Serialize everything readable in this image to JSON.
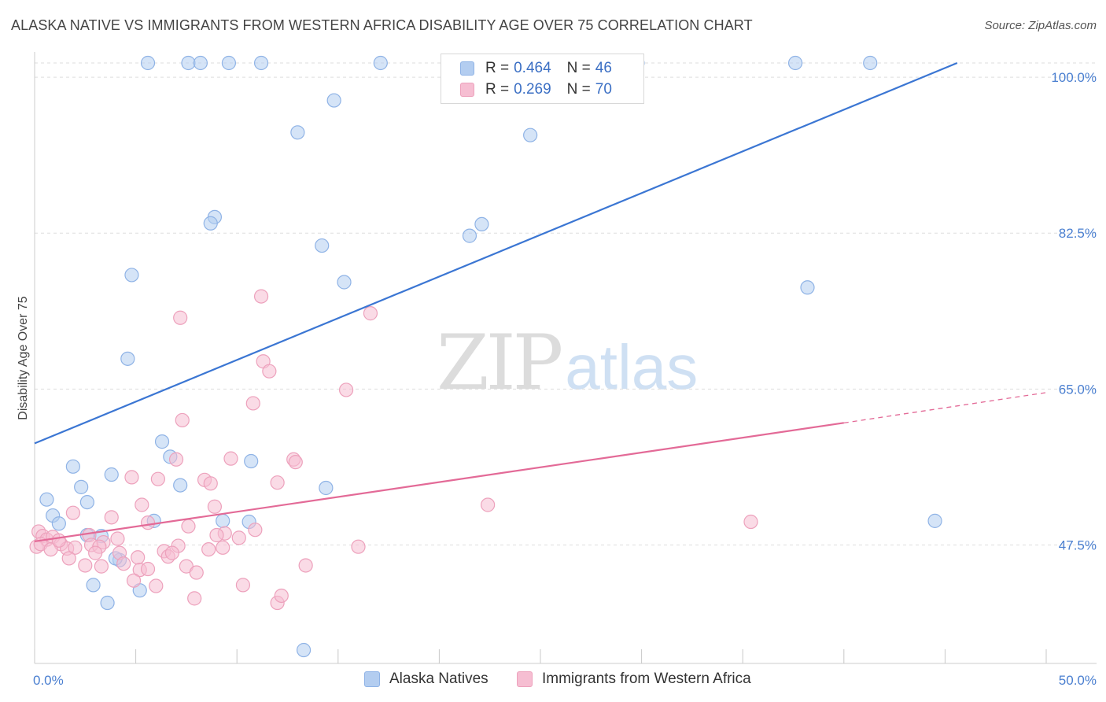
{
  "title": "ALASKA NATIVE VS IMMIGRANTS FROM WESTERN AFRICA DISABILITY AGE OVER 75 CORRELATION CHART",
  "source": "Source: ZipAtlas.com",
  "watermark": {
    "zip": "ZIP",
    "atlas": "atlas"
  },
  "colors": {
    "blue": "#3b76d3",
    "blue_fill": "#b3cdf0",
    "pink": "#e36a97",
    "pink_fill": "#f6bed2",
    "tick": "#4a7fd0",
    "grid": "#dddddd"
  },
  "legend": {
    "r_label": "R =",
    "n_label": "N =",
    "rows": [
      {
        "r": "0.464",
        "n": "46"
      },
      {
        "r": "0.269",
        "n": "70"
      }
    ]
  },
  "chart_data": {
    "type": "scatter",
    "title": "ALASKA NATIVE VS IMMIGRANTS FROM WESTERN AFRICA DISABILITY AGE OVER 75 CORRELATION CHART",
    "xlabel": "",
    "ylabel": "Disability Age Over 75",
    "xlim": [
      0,
      50
    ],
    "ylim": [
      34.2,
      101.6
    ],
    "x_tick_labels": [
      "0.0%",
      "50.0%"
    ],
    "y_ticks": [
      47.5,
      65.0,
      82.5,
      100.0
    ],
    "y_tick_labels": [
      "47.5%",
      "65.0%",
      "82.5%",
      "100.0%"
    ],
    "grid": true,
    "legend_placement": "bottom",
    "series": [
      {
        "name": "Alaska Natives",
        "color": "#3b76d3",
        "trend": {
          "x": [
            0,
            45.6
          ],
          "y": [
            58.9,
            101.6
          ]
        },
        "points": [
          [
            5.6,
            101.6
          ],
          [
            7.6,
            101.6
          ],
          [
            8.2,
            101.6
          ],
          [
            9.6,
            101.6
          ],
          [
            11.2,
            101.6
          ],
          [
            17.1,
            101.6
          ],
          [
            20.6,
            101.6
          ],
          [
            29.8,
            101.6
          ],
          [
            37.6,
            101.6
          ],
          [
            41.3,
            101.6
          ],
          [
            14.8,
            97.4
          ],
          [
            13.0,
            93.8
          ],
          [
            24.5,
            93.5
          ],
          [
            8.9,
            84.3
          ],
          [
            8.7,
            83.6
          ],
          [
            21.5,
            82.2
          ],
          [
            22.1,
            83.5
          ],
          [
            14.2,
            81.1
          ],
          [
            4.8,
            77.8
          ],
          [
            15.3,
            77.0
          ],
          [
            38.2,
            76.4
          ],
          [
            4.6,
            68.4
          ],
          [
            6.3,
            59.1
          ],
          [
            6.7,
            57.4
          ],
          [
            10.7,
            56.9
          ],
          [
            1.9,
            56.3
          ],
          [
            3.8,
            55.4
          ],
          [
            7.2,
            54.2
          ],
          [
            2.3,
            54.0
          ],
          [
            14.4,
            53.9
          ],
          [
            0.6,
            52.6
          ],
          [
            2.6,
            52.3
          ],
          [
            0.9,
            50.8
          ],
          [
            1.2,
            49.9
          ],
          [
            5.9,
            50.2
          ],
          [
            9.3,
            50.2
          ],
          [
            10.6,
            50.1
          ],
          [
            2.6,
            48.6
          ],
          [
            3.3,
            48.5
          ],
          [
            4.2,
            45.8
          ],
          [
            2.9,
            43.0
          ],
          [
            4.0,
            46.0
          ],
          [
            5.2,
            42.4
          ],
          [
            3.6,
            41.0
          ],
          [
            13.3,
            35.7
          ],
          [
            44.5,
            50.2
          ]
        ]
      },
      {
        "name": "Immigrants from Western Africa",
        "color": "#e36a97",
        "trend": {
          "x": [
            0,
            40
          ],
          "y": [
            47.9,
            61.2
          ]
        },
        "trend_dashed": {
          "x": [
            40,
            50
          ],
          "y": [
            61.2,
            64.6
          ]
        },
        "points": [
          [
            11.2,
            75.4
          ],
          [
            7.2,
            73.0
          ],
          [
            11.3,
            68.1
          ],
          [
            11.6,
            67.0
          ],
          [
            15.4,
            64.9
          ],
          [
            10.8,
            63.4
          ],
          [
            7.3,
            61.5
          ],
          [
            9.7,
            57.2
          ],
          [
            7.0,
            57.1
          ],
          [
            12.8,
            57.1
          ],
          [
            12.9,
            56.8
          ],
          [
            4.8,
            55.1
          ],
          [
            6.1,
            54.9
          ],
          [
            8.4,
            54.8
          ],
          [
            8.7,
            54.4
          ],
          [
            12.0,
            54.5
          ],
          [
            5.3,
            52.0
          ],
          [
            8.9,
            51.8
          ],
          [
            22.4,
            52.0
          ],
          [
            1.9,
            51.1
          ],
          [
            3.8,
            50.6
          ],
          [
            5.6,
            50.0
          ],
          [
            7.6,
            49.6
          ],
          [
            9.4,
            48.8
          ],
          [
            10.9,
            49.2
          ],
          [
            0.2,
            49.0
          ],
          [
            0.4,
            48.5
          ],
          [
            0.6,
            48.1
          ],
          [
            0.9,
            48.4
          ],
          [
            1.3,
            47.6
          ],
          [
            1.6,
            47.1
          ],
          [
            2.7,
            48.6
          ],
          [
            3.4,
            47.8
          ],
          [
            4.1,
            48.2
          ],
          [
            0.1,
            47.3
          ],
          [
            0.3,
            47.6
          ],
          [
            0.8,
            47.0
          ],
          [
            1.2,
            48.0
          ],
          [
            2.0,
            47.2
          ],
          [
            2.8,
            47.5
          ],
          [
            3.2,
            47.3
          ],
          [
            4.2,
            46.6
          ],
          [
            5.1,
            46.1
          ],
          [
            6.4,
            46.8
          ],
          [
            7.1,
            47.4
          ],
          [
            8.6,
            47.0
          ],
          [
            9.3,
            47.2
          ],
          [
            10.1,
            48.3
          ],
          [
            6.6,
            46.2
          ],
          [
            2.5,
            45.2
          ],
          [
            1.7,
            46.0
          ],
          [
            3.3,
            45.1
          ],
          [
            5.2,
            44.7
          ],
          [
            5.6,
            44.8
          ],
          [
            7.5,
            45.1
          ],
          [
            8.0,
            44.4
          ],
          [
            4.9,
            43.5
          ],
          [
            6.0,
            42.9
          ],
          [
            10.3,
            43.0
          ],
          [
            7.9,
            41.5
          ],
          [
            12.0,
            41.0
          ],
          [
            12.2,
            41.8
          ],
          [
            13.4,
            45.2
          ],
          [
            16.0,
            47.3
          ],
          [
            35.4,
            50.1
          ],
          [
            16.6,
            73.5
          ],
          [
            9.0,
            48.6
          ],
          [
            6.8,
            46.6
          ],
          [
            3.0,
            46.6
          ],
          [
            4.4,
            45.4
          ]
        ]
      }
    ]
  },
  "bottom_legend": [
    "Alaska Natives",
    "Immigrants from Western Africa"
  ]
}
